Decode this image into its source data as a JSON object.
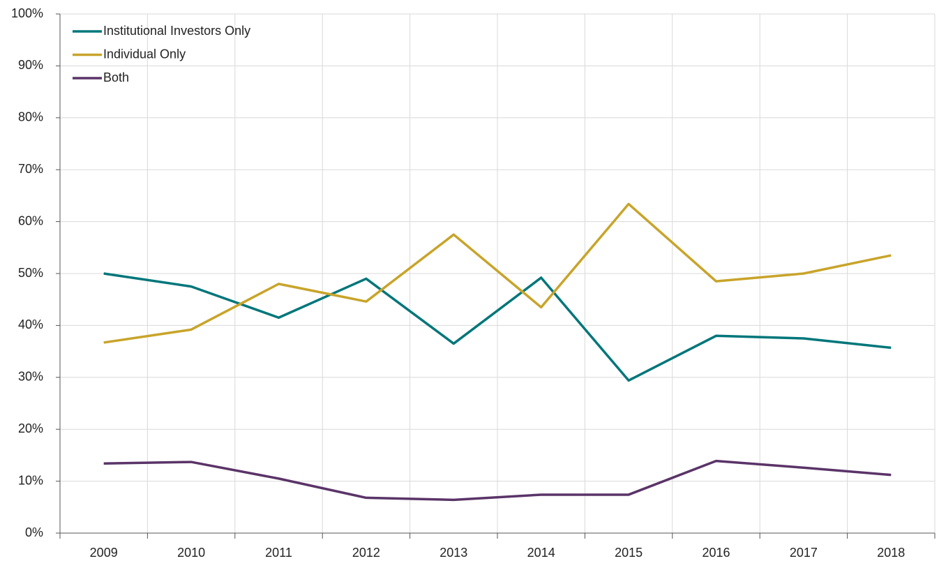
{
  "chart_data": {
    "type": "line",
    "categories": [
      "2009",
      "2010",
      "2011",
      "2012",
      "2013",
      "2014",
      "2015",
      "2016",
      "2017",
      "2018"
    ],
    "series": [
      {
        "name": "Institutional Investors Only",
        "color": "#00767a",
        "values": [
          50,
          47.5,
          41.5,
          49,
          36.5,
          49.2,
          29.4,
          38,
          37.5,
          35.7
        ]
      },
      {
        "name": "Individual Only",
        "color": "#c8a42a",
        "values": [
          36.7,
          39.2,
          48,
          44.6,
          57.5,
          43.5,
          63.4,
          48.5,
          50,
          53.5
        ]
      },
      {
        "name": "Both",
        "color": "#5a3468",
        "values": [
          13.4,
          13.7,
          10.5,
          6.8,
          6.4,
          7.4,
          7.4,
          13.9,
          12.6,
          11.2
        ]
      }
    ],
    "ylim": [
      0,
      100
    ],
    "yticks": [
      {
        "value": 0,
        "label": "0%"
      },
      {
        "value": 10,
        "label": "10%"
      },
      {
        "value": 20,
        "label": "20%"
      },
      {
        "value": 30,
        "label": "30%"
      },
      {
        "value": 40,
        "label": "40%"
      },
      {
        "value": 50,
        "label": "50%"
      },
      {
        "value": 60,
        "label": "60%"
      },
      {
        "value": 70,
        "label": "70%"
      },
      {
        "value": 80,
        "label": "80%"
      },
      {
        "value": 90,
        "label": "90%"
      },
      {
        "value": 100,
        "label": "100%"
      }
    ],
    "grid": true,
    "legend": "upper left"
  }
}
